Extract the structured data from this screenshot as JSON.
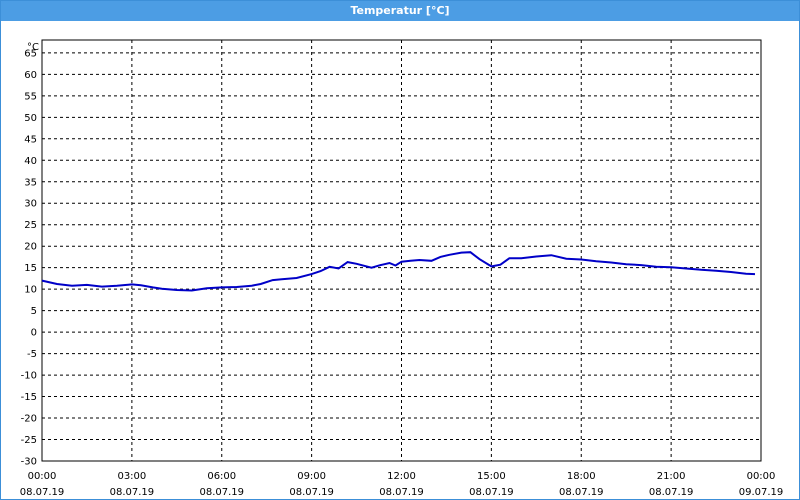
{
  "window": {
    "title": "Temperatur [°C]"
  },
  "chart_data": {
    "type": "line",
    "title": "Temperatur [°C]",
    "y_unit_label": "°C",
    "ylim": [
      -30,
      68
    ],
    "y_ticks": [
      65,
      60,
      55,
      50,
      45,
      40,
      35,
      30,
      25,
      20,
      15,
      10,
      5,
      0,
      -5,
      -10,
      -15,
      -20,
      -25,
      -30
    ],
    "x_range_hours": [
      0,
      24
    ],
    "x_ticks": [
      {
        "hour": 0,
        "time": "00:00",
        "date": "08.07.19"
      },
      {
        "hour": 3,
        "time": "03:00",
        "date": "08.07.19"
      },
      {
        "hour": 6,
        "time": "06:00",
        "date": "08.07.19"
      },
      {
        "hour": 9,
        "time": "09:00",
        "date": "08.07.19"
      },
      {
        "hour": 12,
        "time": "12:00",
        "date": "08.07.19"
      },
      {
        "hour": 15,
        "time": "15:00",
        "date": "08.07.19"
      },
      {
        "hour": 18,
        "time": "18:00",
        "date": "08.07.19"
      },
      {
        "hour": 21,
        "time": "21:00",
        "date": "08.07.19"
      },
      {
        "hour": 24,
        "time": "00:00",
        "date": "09.07.19"
      }
    ],
    "grid": true,
    "line_color": "#0000c8",
    "series": [
      {
        "x": [
          0,
          0.5,
          1,
          1.5,
          2,
          2.5,
          3,
          3.3,
          3.7,
          4,
          4.5,
          5,
          5.5,
          6,
          6.5,
          7,
          7.3,
          7.7,
          8,
          8.5,
          9,
          9.3,
          9.6,
          9.9,
          10.2,
          10.5,
          11,
          11.3,
          11.6,
          11.8,
          12,
          12.3,
          12.6,
          13,
          13.3,
          13.6,
          14,
          14.3,
          14.6,
          15,
          15.3,
          15.6,
          16,
          16.5,
          17,
          17.5,
          18,
          18.5,
          19,
          19.5,
          20,
          20.5,
          21,
          21.5,
          22,
          22.5,
          23,
          23.5,
          23.8
        ],
        "y": [
          12,
          11.2,
          10.8,
          11,
          10.6,
          10.8,
          11.1,
          10.9,
          10.4,
          10.1,
          9.8,
          9.7,
          10.2,
          10.4,
          10.5,
          10.8,
          11.2,
          12.1,
          12.3,
          12.6,
          13.5,
          14.2,
          15.2,
          14.8,
          16.3,
          15.9,
          15,
          15.6,
          16.1,
          15.5,
          16.4,
          16.6,
          16.8,
          16.6,
          17.5,
          18,
          18.5,
          18.6,
          17,
          15.3,
          15.7,
          17.2,
          17.2,
          17.6,
          17.9,
          17.1,
          16.9,
          16.5,
          16.2,
          15.8,
          15.6,
          15.2,
          15.1,
          14.8,
          14.5,
          14.3,
          14,
          13.6,
          13.5
        ]
      }
    ]
  }
}
